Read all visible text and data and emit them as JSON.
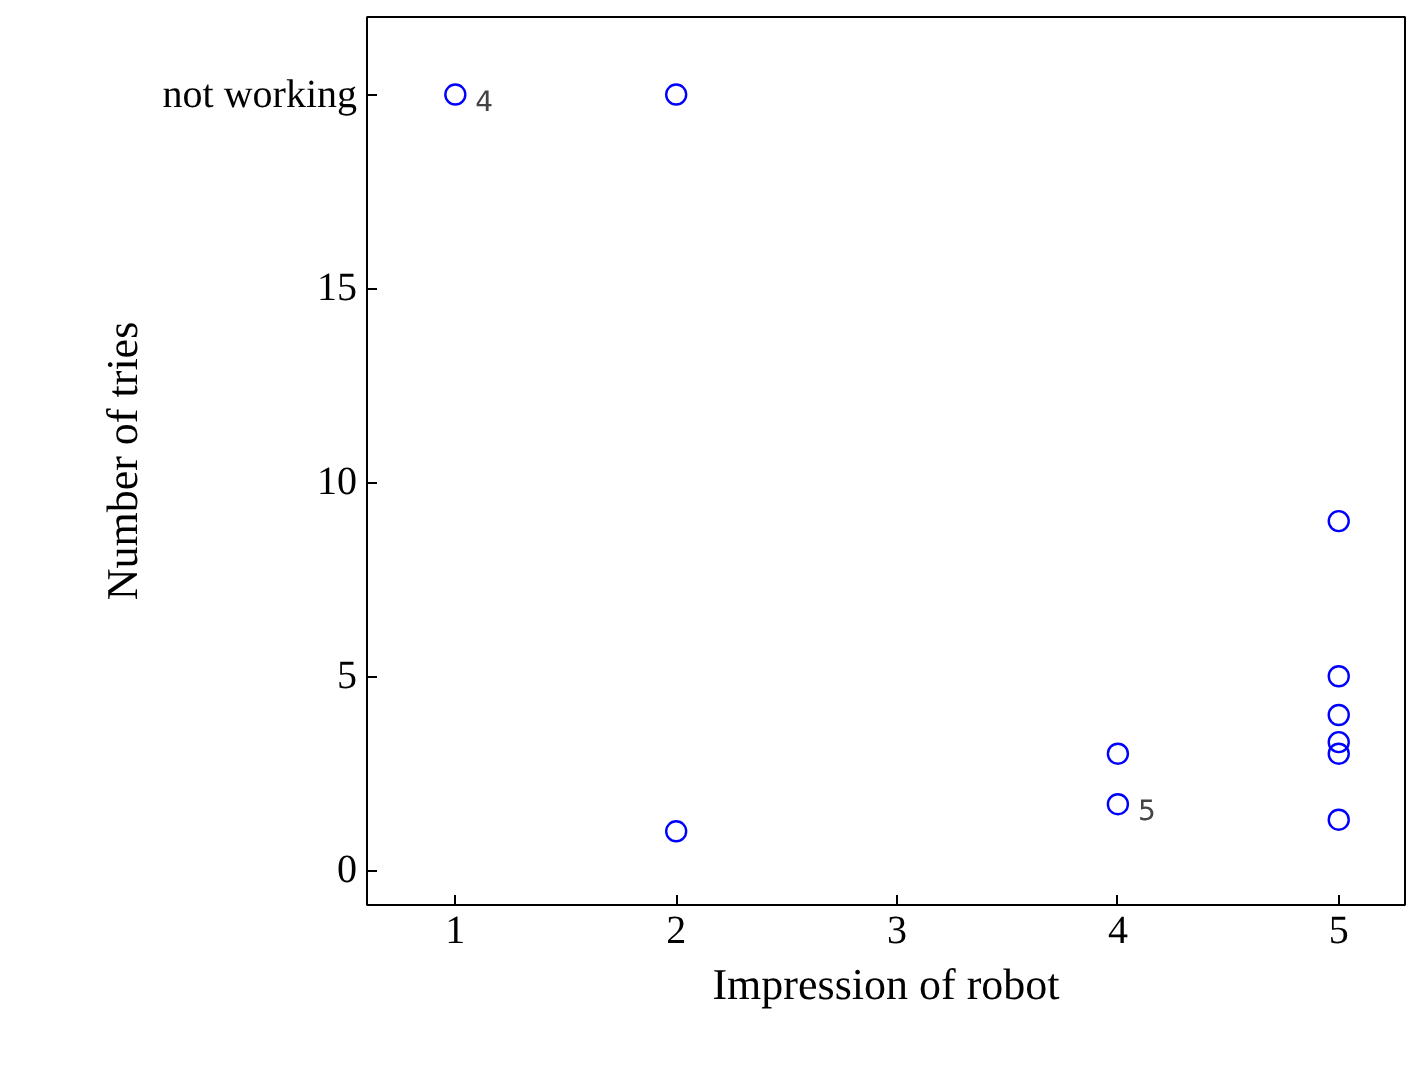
{
  "chart_data": {
    "type": "scatter",
    "xlabel": "Impression of robot",
    "ylabel": "Number of tries",
    "x": [
      1,
      2,
      2,
      4,
      4,
      5,
      5,
      5,
      5,
      5,
      5
    ],
    "series": [
      {
        "color": "#0000ff",
        "values": [
          20,
          20,
          1,
          3,
          1.7,
          9,
          5,
          4,
          3.3,
          3,
          1.3
        ]
      }
    ],
    "xlim": [
      0.6,
      5.3
    ],
    "ylim": [
      -0.9,
      22
    ],
    "xticks": [
      1,
      2,
      3,
      4,
      5
    ],
    "yticks": [
      0,
      5,
      10,
      15,
      {
        "value": 20,
        "label": "not working"
      }
    ],
    "marker": "circle",
    "grid": false,
    "annotations": [
      {
        "text": "4",
        "x": 1,
        "y": 20
      },
      {
        "text": "5",
        "x": 4,
        "y": 1.7
      }
    ]
  }
}
